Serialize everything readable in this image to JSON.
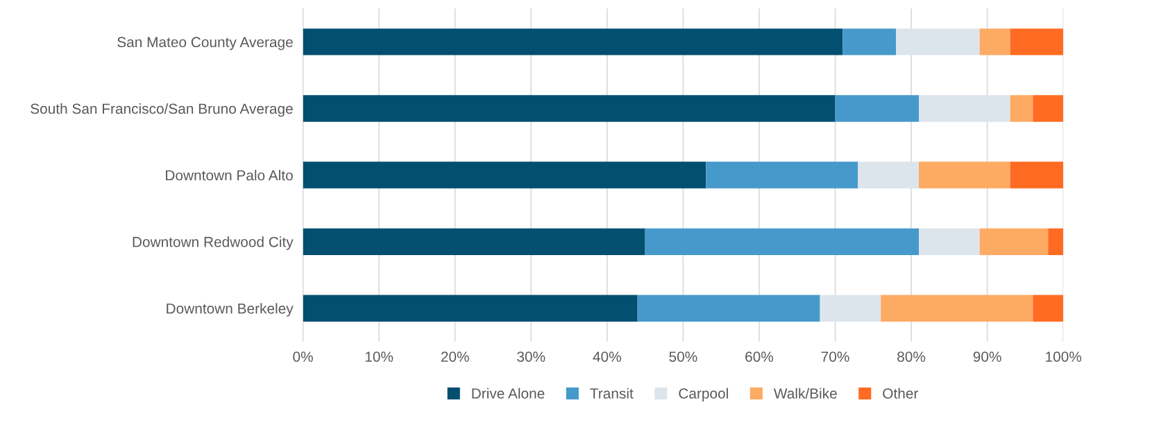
{
  "chart_data": {
    "type": "bar",
    "orientation": "horizontal",
    "stacked": true,
    "categories": [
      "San Mateo County Average",
      "South San Francisco/San Bruno Average",
      "Downtown Palo Alto",
      "Downtown Redwood City",
      "Downtown Berkeley"
    ],
    "series": [
      {
        "name": "Drive Alone",
        "color": "#034f6f",
        "values": [
          71,
          70,
          53,
          45,
          44
        ]
      },
      {
        "name": "Transit",
        "color": "#4699cb",
        "values": [
          7,
          11,
          20,
          36,
          24
        ]
      },
      {
        "name": "Carpool",
        "color": "#dde5ec",
        "values": [
          11,
          12,
          8,
          8,
          8
        ]
      },
      {
        "name": "Walk/Bike",
        "color": "#fdaa63",
        "values": [
          4,
          3,
          12,
          9,
          20
        ]
      },
      {
        "name": "Other",
        "color": "#ff6b22",
        "values": [
          7,
          4,
          7,
          2,
          4
        ]
      }
    ],
    "xlim": [
      0,
      100
    ],
    "xticks": [
      {
        "value": 0,
        "label": "0%"
      },
      {
        "value": 10,
        "label": "10%"
      },
      {
        "value": 20,
        "label": "20%"
      },
      {
        "value": 30,
        "label": "30%"
      },
      {
        "value": 40,
        "label": "40%"
      },
      {
        "value": 50,
        "label": "50%"
      },
      {
        "value": 60,
        "label": "60%"
      },
      {
        "value": 70,
        "label": "70%"
      },
      {
        "value": 80,
        "label": "80%"
      },
      {
        "value": 90,
        "label": "90%"
      },
      {
        "value": 100,
        "label": "100%"
      }
    ],
    "grid": "x",
    "legend": "bottom"
  }
}
